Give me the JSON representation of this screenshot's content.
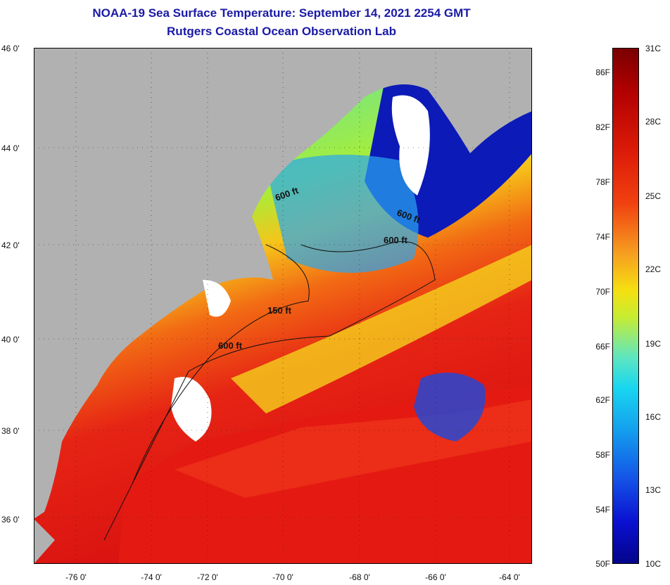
{
  "title": "NOAA-19 Sea Surface Temperature:  September 14, 2021 2254 GMT",
  "subtitle": "Rutgers Coastal Ocean Observation Lab",
  "lat_labels": [
    "46 0'",
    "44 0'",
    "42 0'",
    "40 0'",
    "38 0'",
    "36 0'"
  ],
  "lon_labels": [
    "-76 0'",
    "-74 0'",
    "-72 0'",
    "-70 0'",
    "-68 0'",
    "-66 0'",
    "-64 0'"
  ],
  "contour_labels": [
    "600 ft",
    "600 ft",
    "600 ft",
    "150 ft",
    "600 ft"
  ],
  "colorbar": {
    "fahrenheit": [
      "86F",
      "82F",
      "78F",
      "74F",
      "70F",
      "66F",
      "62F",
      "58F",
      "54F",
      "50F"
    ],
    "celsius": [
      "31C",
      "28C",
      "25C",
      "22C",
      "19C",
      "16C",
      "13C",
      "10C"
    ]
  },
  "colors": {
    "title": "#1a1aa6",
    "land": "#b1b1b1",
    "cloud": "#ffffff",
    "warm_water": "#e01818",
    "cold_water": "#0a14c8"
  }
}
